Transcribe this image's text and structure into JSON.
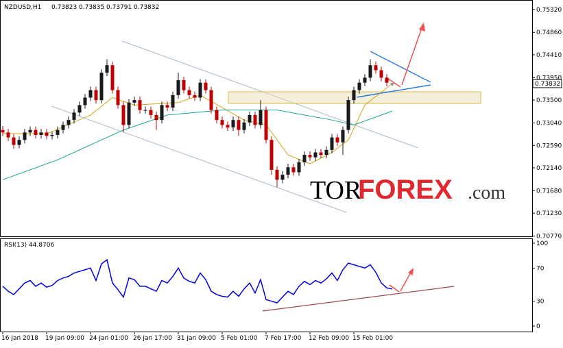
{
  "chart_data": {
    "type": "candlestick",
    "title": "NZDUSD,H1",
    "header_values": [
      "0.73823",
      "0.73835",
      "0.73791",
      "0.73832"
    ],
    "up_color": "#1a1a1a",
    "down_color": "#c00000",
    "xlim": [
      -0.5,
      96.5
    ],
    "xticks": [
      {
        "value": 0,
        "label": "16 Jan 2018"
      },
      {
        "value": 8,
        "label": "19 Jan 09:00"
      },
      {
        "value": 16,
        "label": "24 Jan 01:00"
      },
      {
        "value": 24,
        "label": "26 Jan 17:00"
      },
      {
        "value": 32,
        "label": "31 Jan 09:00"
      },
      {
        "value": 40,
        "label": "5 Feb 01:00"
      },
      {
        "value": 48,
        "label": "7 Feb 17:00"
      },
      {
        "value": 56,
        "label": "12 Feb 09:00"
      },
      {
        "value": 64,
        "label": "15 Feb 01:00"
      }
    ],
    "ylim": [
      0.7075,
      0.7551
    ],
    "yticks": [
      {
        "value": 0.7532,
        "label": "0.75320"
      },
      {
        "value": 0.7486,
        "label": "0.74860"
      },
      {
        "value": 0.7441,
        "label": "0.74410"
      },
      {
        "value": 0.7395,
        "label": "0.73950"
      },
      {
        "value": 0.735,
        "label": "0.73500"
      },
      {
        "value": 0.7304,
        "label": "0.73040"
      },
      {
        "value": 0.7259,
        "label": "0.72590"
      },
      {
        "value": 0.7214,
        "label": "0.72140"
      },
      {
        "value": 0.7168,
        "label": "0.71680"
      },
      {
        "value": 0.7123,
        "label": "0.71230"
      },
      {
        "value": 0.7077,
        "label": "0.70770"
      }
    ],
    "last_price": 0.73832,
    "open": [
      0.729,
      0.7285,
      0.7275,
      0.726,
      0.727,
      0.7285,
      0.729,
      0.728,
      0.7285,
      0.7278,
      0.728,
      0.729,
      0.73,
      0.731,
      0.7325,
      0.734,
      0.7355,
      0.737,
      0.735,
      0.7405,
      0.742,
      0.737,
      0.734,
      0.73,
      0.7345,
      0.735,
      0.733,
      0.733,
      0.732,
      0.731,
      0.734,
      0.7335,
      0.736,
      0.739,
      0.737,
      0.736,
      0.7355,
      0.7385,
      0.737,
      0.733,
      0.731,
      0.73,
      0.7295,
      0.731,
      0.729,
      0.7305,
      0.732,
      0.73,
      0.733,
      0.727,
      0.721,
      0.719,
      0.72,
      0.7215,
      0.7205,
      0.7225,
      0.724,
      0.7235,
      0.7245,
      0.724,
      0.725,
      0.7275,
      0.7265,
      0.729,
      0.735,
      0.737,
      0.7385,
      0.7395,
      0.742,
      0.741,
      0.7395,
      0.73823
    ],
    "high": [
      0.7298,
      0.7292,
      0.7282,
      0.7277,
      0.7292,
      0.7297,
      0.7297,
      0.7292,
      0.7292,
      0.7287,
      0.7297,
      0.7307,
      0.7317,
      0.7332,
      0.7347,
      0.7362,
      0.7377,
      0.7377,
      0.7412,
      0.7432,
      0.7427,
      0.7377,
      0.7347,
      0.7352,
      0.7357,
      0.7357,
      0.7337,
      0.7337,
      0.7327,
      0.7347,
      0.7347,
      0.7367,
      0.7405,
      0.7397,
      0.7377,
      0.7367,
      0.7392,
      0.7392,
      0.7377,
      0.7337,
      0.7317,
      0.7307,
      0.7317,
      0.7317,
      0.7312,
      0.7327,
      0.7327,
      0.735,
      0.7337,
      0.7277,
      0.7217,
      0.7207,
      0.7222,
      0.7222,
      0.7232,
      0.7247,
      0.7247,
      0.7252,
      0.7252,
      0.7257,
      0.7282,
      0.7282,
      0.7297,
      0.7357,
      0.7377,
      0.7392,
      0.7402,
      0.7432,
      0.7427,
      0.7417,
      0.7402,
      0.73835
    ],
    "low": [
      0.7278,
      0.7268,
      0.7252,
      0.7253,
      0.7263,
      0.7278,
      0.7273,
      0.7273,
      0.7271,
      0.7271,
      0.7273,
      0.7283,
      0.7293,
      0.7303,
      0.7318,
      0.7333,
      0.7348,
      0.7343,
      0.7343,
      0.7398,
      0.7363,
      0.7333,
      0.7285,
      0.7293,
      0.7338,
      0.7323,
      0.7323,
      0.7313,
      0.729,
      0.7303,
      0.7328,
      0.7328,
      0.7353,
      0.7363,
      0.7353,
      0.7348,
      0.7348,
      0.7363,
      0.7323,
      0.7303,
      0.7293,
      0.7288,
      0.7288,
      0.7278,
      0.7283,
      0.7298,
      0.7293,
      0.7293,
      0.7263,
      0.72,
      0.7175,
      0.7183,
      0.7193,
      0.7198,
      0.7198,
      0.7218,
      0.7228,
      0.7228,
      0.7233,
      0.7233,
      0.7243,
      0.7258,
      0.724,
      0.7283,
      0.7343,
      0.7363,
      0.7378,
      0.7388,
      0.7403,
      0.7388,
      0.7378,
      0.73791
    ],
    "close": [
      0.7285,
      0.7275,
      0.726,
      0.727,
      0.7285,
      0.729,
      0.728,
      0.7285,
      0.7278,
      0.728,
      0.729,
      0.73,
      0.731,
      0.7325,
      0.734,
      0.7355,
      0.737,
      0.735,
      0.7405,
      0.742,
      0.737,
      0.734,
      0.73,
      0.7345,
      0.735,
      0.733,
      0.733,
      0.732,
      0.731,
      0.734,
      0.7335,
      0.736,
      0.739,
      0.737,
      0.736,
      0.7355,
      0.7385,
      0.737,
      0.733,
      0.731,
      0.73,
      0.7295,
      0.731,
      0.729,
      0.7305,
      0.732,
      0.73,
      0.733,
      0.727,
      0.721,
      0.719,
      0.72,
      0.7215,
      0.7205,
      0.7225,
      0.724,
      0.7235,
      0.7245,
      0.724,
      0.725,
      0.7275,
      0.7265,
      0.729,
      0.735,
      0.737,
      0.7385,
      0.7395,
      0.742,
      0.741,
      0.7395,
      0.7385,
      0.73832
    ],
    "moving_averages": [
      {
        "color": "#d9a21b",
        "x": [
          0,
          8,
          16,
          20,
          24,
          32,
          36,
          40,
          44,
          48,
          52,
          56,
          60,
          63,
          66,
          71
        ],
        "values": [
          0.7283,
          0.7282,
          0.732,
          0.7355,
          0.734,
          0.7345,
          0.736,
          0.7335,
          0.731,
          0.73,
          0.724,
          0.7222,
          0.7245,
          0.727,
          0.734,
          0.7383
        ]
      },
      {
        "color": "#1aa396",
        "x": [
          0,
          10,
          22,
          30,
          40,
          50,
          60,
          64,
          71
        ],
        "values": [
          0.719,
          0.723,
          0.729,
          0.732,
          0.733,
          0.733,
          0.731,
          0.73,
          0.7328
        ]
      }
    ],
    "rsi": {
      "title": "RSI(13) 44.8706",
      "color": "#0000e0",
      "ylim": [
        -6.6,
        105.8
      ],
      "yticks": [
        100,
        70,
        30,
        0
      ],
      "values": [
        48,
        42,
        38,
        45,
        52,
        55,
        48,
        52,
        47,
        49,
        55,
        58,
        60,
        64,
        66,
        68,
        70,
        55,
        75,
        80,
        52,
        44,
        35,
        58,
        56,
        48,
        48,
        45,
        42,
        55,
        52,
        60,
        70,
        58,
        54,
        52,
        64,
        56,
        42,
        38,
        36,
        35,
        42,
        36,
        45,
        52,
        40,
        56,
        32,
        30,
        28,
        35,
        42,
        38,
        48,
        54,
        50,
        55,
        52,
        57,
        64,
        55,
        68,
        76,
        74,
        72,
        70,
        74,
        65,
        52,
        46,
        44.8706
      ]
    },
    "logo": [
      "TOR",
      "FOREX",
      ".com"
    ]
  }
}
